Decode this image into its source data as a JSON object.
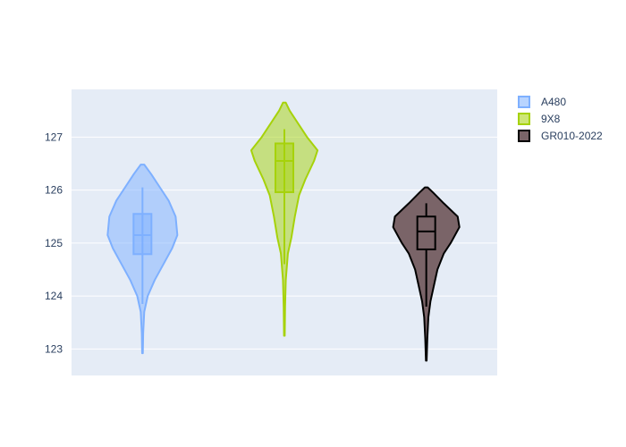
{
  "chart_data": {
    "type": "violin",
    "title": "",
    "xlabel": "",
    "ylabel": "",
    "ylim": [
      122.5,
      127.9
    ],
    "yticks": [
      123,
      124,
      125,
      126,
      127
    ],
    "grid": true,
    "legend_position": "top-right",
    "series": [
      {
        "name": "A480",
        "color": "#7eb0ff",
        "box": {
          "q1": 124.79,
          "median": 125.15,
          "q3": 125.55,
          "whisker_low": 123.85,
          "whisker_high": 126.05
        },
        "range": [
          122.92,
          126.48
        ],
        "density": [
          [
            122.92,
            0.01
          ],
          [
            123.3,
            0.02
          ],
          [
            123.7,
            0.05
          ],
          [
            124.0,
            0.15
          ],
          [
            124.3,
            0.35
          ],
          [
            124.6,
            0.6
          ],
          [
            124.9,
            0.85
          ],
          [
            125.15,
            1.0
          ],
          [
            125.5,
            0.95
          ],
          [
            125.8,
            0.75
          ],
          [
            126.05,
            0.5
          ],
          [
            126.3,
            0.25
          ],
          [
            126.48,
            0.05
          ]
        ]
      },
      {
        "name": "9X8",
        "color": "#a6d20a",
        "box": {
          "q1": 125.96,
          "median": 126.55,
          "q3": 126.88,
          "whisker_low": 124.6,
          "whisker_high": 127.15
        },
        "range": [
          123.25,
          127.65
        ],
        "density": [
          [
            123.25,
            0.01
          ],
          [
            123.8,
            0.02
          ],
          [
            124.3,
            0.04
          ],
          [
            124.8,
            0.1
          ],
          [
            125.1,
            0.2
          ],
          [
            125.5,
            0.3
          ],
          [
            125.9,
            0.42
          ],
          [
            126.2,
            0.6
          ],
          [
            126.55,
            0.85
          ],
          [
            126.75,
            0.95
          ],
          [
            127.0,
            0.65
          ],
          [
            127.3,
            0.35
          ],
          [
            127.5,
            0.15
          ],
          [
            127.65,
            0.04
          ]
        ]
      },
      {
        "name": "GR010-2022",
        "color": "#7a6468",
        "box": {
          "q1": 124.88,
          "median": 125.22,
          "q3": 125.5,
          "whisker_low": 123.8,
          "whisker_high": 125.75
        },
        "range": [
          122.78,
          126.05
        ],
        "density": [
          [
            122.78,
            0.01
          ],
          [
            123.2,
            0.03
          ],
          [
            123.6,
            0.06
          ],
          [
            123.9,
            0.12
          ],
          [
            124.2,
            0.22
          ],
          [
            124.5,
            0.32
          ],
          [
            124.8,
            0.5
          ],
          [
            125.0,
            0.7
          ],
          [
            125.3,
            0.95
          ],
          [
            125.5,
            0.9
          ],
          [
            125.75,
            0.5
          ],
          [
            125.95,
            0.2
          ],
          [
            126.05,
            0.04
          ]
        ]
      }
    ]
  }
}
